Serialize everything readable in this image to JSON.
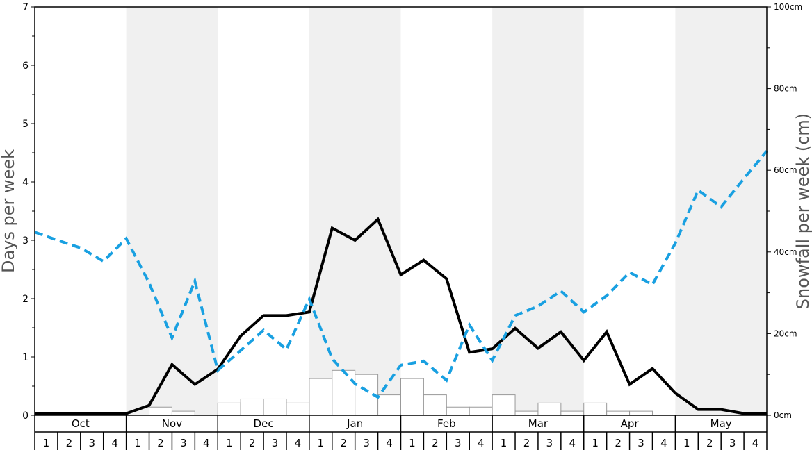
{
  "chart_data": {
    "type": "bar+line",
    "ylabel_left": "Days per week",
    "ylabel_right": "Snowfall per week (cm)",
    "ylim_left": [
      0,
      7
    ],
    "ylim_right": [
      0,
      100
    ],
    "yticks_left": [
      "0",
      "1",
      "2",
      "3",
      "4",
      "5",
      "6",
      "7"
    ],
    "yticks_right": [
      "0cm",
      "20cm",
      "40cm",
      "60cm",
      "80cm",
      "100cm"
    ],
    "months": [
      "Oct",
      "Nov",
      "Dec",
      "Jan",
      "Feb",
      "Mar",
      "Apr",
      "May"
    ],
    "weeks": [
      "1",
      "2",
      "3",
      "4"
    ],
    "colors": {
      "dashed_series": "#19a0e1",
      "solid_series": "#000000",
      "bars_fill": "#ffffff",
      "bars_stroke": "#999999",
      "shade": "#f0f0f0"
    },
    "series": [
      {
        "style": "bars",
        "axis": "left",
        "values": [
          0,
          0,
          0,
          0,
          0,
          0.14,
          0.07,
          0,
          0.21,
          0.28,
          0.28,
          0.21,
          0.63,
          0.77,
          0.7,
          0.35,
          0.63,
          0.35,
          0.14,
          0.14,
          0.35,
          0.07,
          0.21,
          0.07,
          0.21,
          0.07,
          0.07,
          0,
          0,
          0,
          0,
          0
        ]
      },
      {
        "style": "solid-line",
        "axis": "left",
        "values": [
          0.03,
          0.03,
          0.03,
          0.03,
          0.03,
          0.17,
          0.87,
          0.53,
          0.79,
          1.36,
          1.71,
          1.71,
          1.77,
          3.21,
          3.0,
          3.36,
          2.41,
          2.66,
          2.34,
          1.08,
          1.14,
          1.49,
          1.15,
          1.43,
          0.94,
          1.43,
          0.53,
          0.8,
          0.38,
          0.1,
          0.1,
          0.03,
          0.03
        ]
      },
      {
        "style": "dashed-line",
        "axis": "left",
        "values": [
          3.14,
          3.0,
          2.87,
          2.64,
          3.03,
          2.27,
          1.33,
          2.3,
          0.77,
          1.11,
          1.46,
          1.13,
          1.99,
          0.97,
          0.54,
          0.31,
          0.86,
          0.93,
          0.6,
          1.55,
          0.94,
          1.71,
          1.87,
          2.13,
          1.77,
          2.05,
          2.45,
          2.24,
          2.95,
          3.86,
          3.57,
          4.06,
          4.53
        ]
      }
    ]
  }
}
